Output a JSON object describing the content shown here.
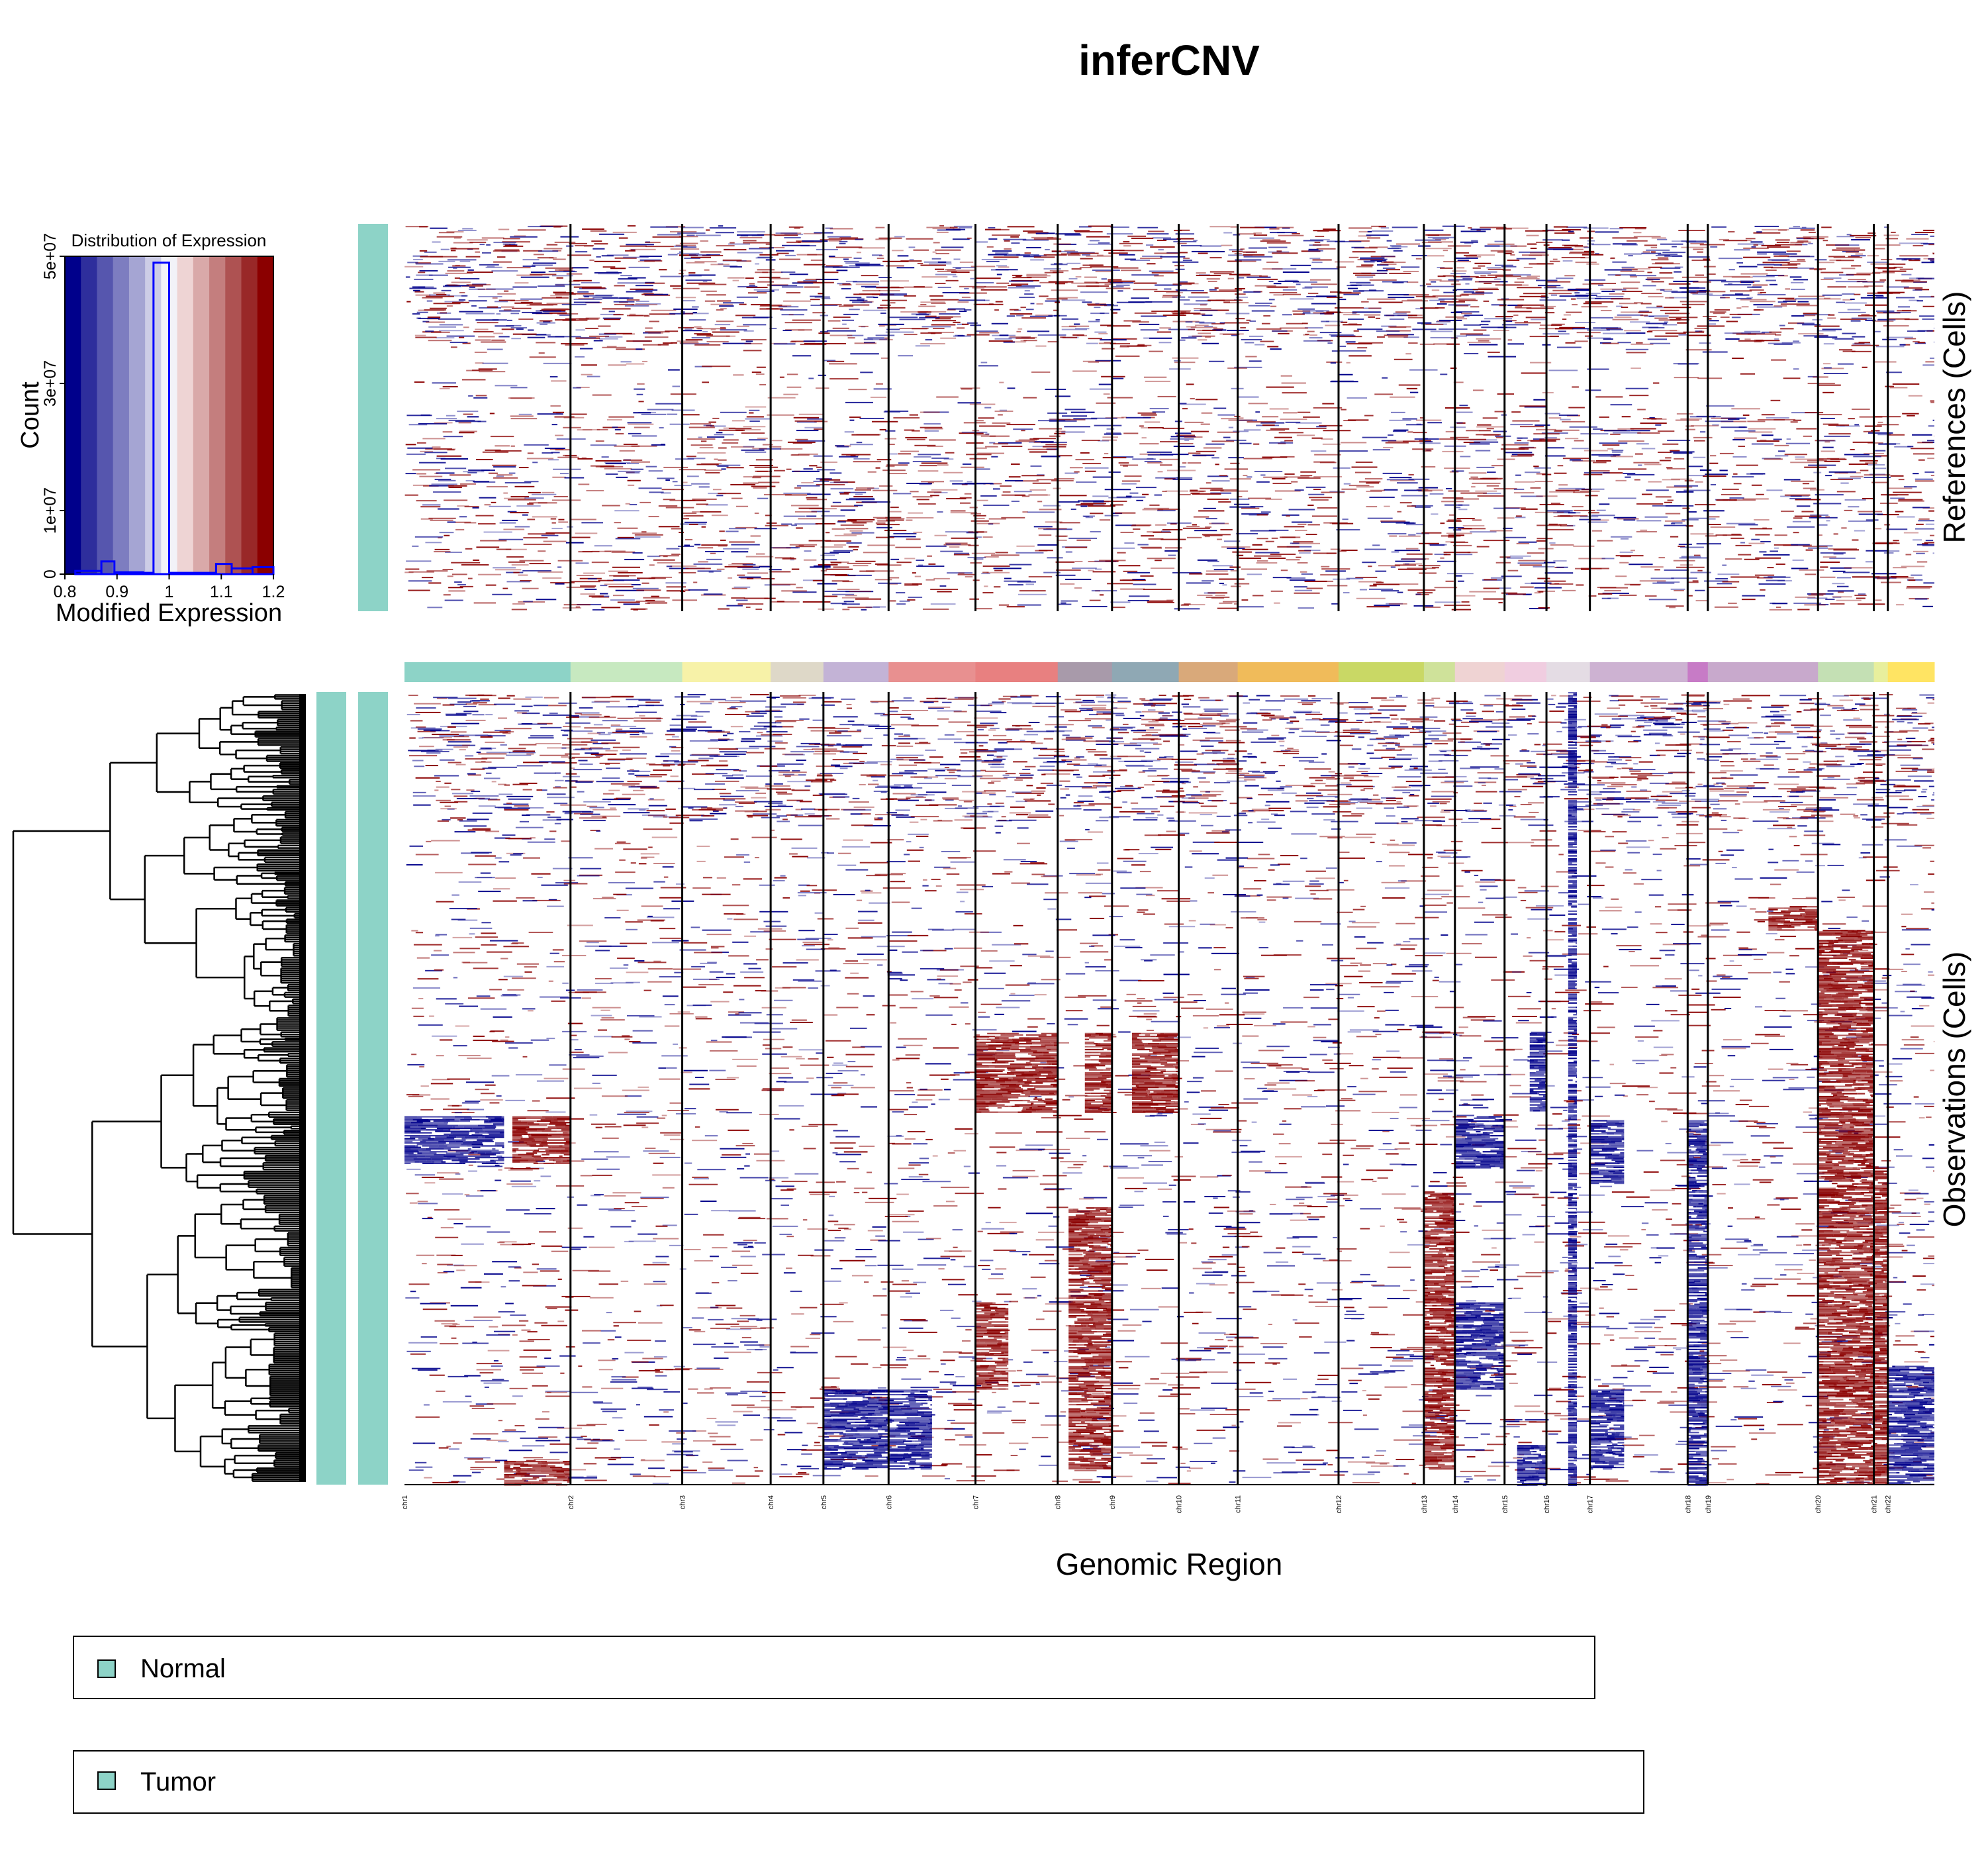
{
  "title": "inferCNV",
  "xlabel": "Genomic Region",
  "ref_label": "References (Cells)",
  "obs_label": "Observations (Cells)",
  "legend": {
    "items": [
      {
        "label": "Normal",
        "color": "#8dd3c7"
      },
      {
        "label": "Tumor",
        "color": "#8dd3c7"
      }
    ]
  },
  "colors": {
    "gain": "#8b0000",
    "loss": "#00008b",
    "neutral": "#ffffff",
    "annotation": "#8dd3c7",
    "hist_line": "#0000ff"
  },
  "chart_data": [
    {
      "type": "bar",
      "title": "Distribution of Expression",
      "xlabel": "Modified Expression",
      "ylabel": "Count",
      "xlim": [
        0.8,
        1.2
      ],
      "ylim": [
        0,
        50000000
      ],
      "x_ticks": [
        "0.8",
        "0.9",
        "1",
        "1.1",
        "1.2"
      ],
      "y_ticks": [
        "0",
        "1e+07",
        "3e+07",
        "5e+07"
      ],
      "color_scale": [
        "#00008b",
        "#2e2e9c",
        "#5656ae",
        "#7d7dc0",
        "#a5a5d3",
        "#cdcde6",
        "#f2f2f8",
        "#eed4d4",
        "#d9a9a9",
        "#c47e7e",
        "#ae5252",
        "#992828",
        "#8b0000"
      ],
      "bins": [
        {
          "x0": 0.82,
          "x1": 0.87,
          "count": 500000
        },
        {
          "x0": 0.87,
          "x1": 0.895,
          "count": 2000000
        },
        {
          "x0": 0.895,
          "x1": 0.95,
          "count": 300000
        },
        {
          "x0": 0.95,
          "x1": 0.97,
          "count": 200000
        },
        {
          "x0": 0.97,
          "x1": 1.0,
          "count": 49000000
        },
        {
          "x0": 1.0,
          "x1": 1.09,
          "count": 200000
        },
        {
          "x0": 1.09,
          "x1": 1.12,
          "count": 1600000
        },
        {
          "x0": 1.12,
          "x1": 1.16,
          "count": 900000
        },
        {
          "x0": 1.16,
          "x1": 1.2,
          "count": 1100000
        }
      ]
    },
    {
      "type": "heatmap",
      "title": "inferCNV",
      "xlabel": "Genomic Region",
      "chromosomes": [
        "chr1",
        "chr2",
        "chr3",
        "chr4",
        "chr5",
        "chr6",
        "chr7",
        "chr8",
        "chr9",
        "chr10",
        "chr11",
        "chr12",
        "chr13",
        "chr14",
        "chr15",
        "chr16",
        "chr17",
        "chr18",
        "chr19",
        "chr20",
        "chr21",
        "chr22"
      ],
      "chromosome_colors": [
        "#8dd3c7",
        "#c7e9c0",
        "#f7f2a8",
        "#ded8c8",
        "#c3b3d6",
        "#e89090",
        "#e88080",
        "#a89aaa",
        "#8fa8b4",
        "#d9a97a",
        "#f0bb5a",
        "#c9d865",
        "#cfe29a",
        "#efd3d3",
        "#f0cde0",
        "#e4dce4",
        "#cdb2d2",
        "#c77bc6",
        "#c8a9cc",
        "#c4e0b4",
        "#e8ef9d",
        "#ffe463"
      ],
      "chromosome_width_fraction": [
        0.107,
        0.072,
        0.057,
        0.034,
        0.042,
        0.056,
        0.053,
        0.035,
        0.043,
        0.038,
        0.065,
        0.055,
        0.02,
        0.032,
        0.027,
        0.028,
        0.063,
        0.013,
        0.071,
        0.036,
        0.009,
        0.03
      ],
      "value_range": [
        0.8,
        1.2
      ],
      "row_groups": [
        {
          "name": "References (Cells)",
          "annotation": "Normal"
        },
        {
          "name": "Observations (Cells)",
          "annotation": "Tumor"
        }
      ],
      "observation_cnv_blocks": [
        {
          "chr": "chr1",
          "start_frac": 0.0,
          "end_frac": 0.6,
          "row_start": 0.535,
          "row_end": 0.595,
          "value": "loss"
        },
        {
          "chr": "chr1",
          "start_frac": 0.65,
          "end_frac": 1.0,
          "row_start": 0.535,
          "row_end": 0.595,
          "value": "gain"
        },
        {
          "chr": "chr1",
          "start_frac": 0.6,
          "end_frac": 1.0,
          "row_start": 0.97,
          "row_end": 1.0,
          "value": "gain"
        },
        {
          "chr": "chr5",
          "start_frac": 0.0,
          "end_frac": 1.0,
          "row_start": 0.88,
          "row_end": 0.98,
          "value": "loss"
        },
        {
          "chr": "chr6",
          "start_frac": 0.0,
          "end_frac": 0.5,
          "row_start": 0.88,
          "row_end": 0.98,
          "value": "loss"
        },
        {
          "chr": "chr7",
          "start_frac": 0.0,
          "end_frac": 1.0,
          "row_start": 0.43,
          "row_end": 0.53,
          "value": "gain"
        },
        {
          "chr": "chr7",
          "start_frac": 0.0,
          "end_frac": 0.4,
          "row_start": 0.77,
          "row_end": 0.88,
          "value": "gain"
        },
        {
          "chr": "chr8",
          "start_frac": 0.5,
          "end_frac": 1.0,
          "row_start": 0.43,
          "row_end": 0.53,
          "value": "gain"
        },
        {
          "chr": "chr8",
          "start_frac": 0.2,
          "end_frac": 1.0,
          "row_start": 0.65,
          "row_end": 0.98,
          "value": "gain"
        },
        {
          "chr": "chr9",
          "start_frac": 0.3,
          "end_frac": 1.0,
          "row_start": 0.43,
          "row_end": 0.53,
          "value": "gain"
        },
        {
          "chr": "chr13",
          "start_frac": 0.0,
          "end_frac": 1.0,
          "row_start": 0.63,
          "row_end": 0.98,
          "value": "gain"
        },
        {
          "chr": "chr14",
          "start_frac": 0.0,
          "end_frac": 1.0,
          "row_start": 0.535,
          "row_end": 0.6,
          "value": "loss"
        },
        {
          "chr": "chr14",
          "start_frac": 0.0,
          "end_frac": 1.0,
          "row_start": 0.77,
          "row_end": 0.88,
          "value": "loss"
        },
        {
          "chr": "chr15",
          "start_frac": 0.6,
          "end_frac": 1.0,
          "row_start": 0.43,
          "row_end": 0.53,
          "value": "loss"
        },
        {
          "chr": "chr15",
          "start_frac": 0.3,
          "end_frac": 1.0,
          "row_start": 0.95,
          "row_end": 1.0,
          "value": "loss"
        },
        {
          "chr": "chr16",
          "start_frac": 0.5,
          "end_frac": 0.7,
          "row_start": 0.0,
          "row_end": 1.0,
          "value": "loss"
        },
        {
          "chr": "chr17",
          "start_frac": 0.0,
          "end_frac": 0.35,
          "row_start": 0.54,
          "row_end": 0.62,
          "value": "loss"
        },
        {
          "chr": "chr17",
          "start_frac": 0.0,
          "end_frac": 0.35,
          "row_start": 0.88,
          "row_end": 0.98,
          "value": "loss"
        },
        {
          "chr": "chr18",
          "start_frac": 0.0,
          "end_frac": 1.0,
          "row_start": 0.54,
          "row_end": 1.0,
          "value": "loss"
        },
        {
          "chr": "chr19",
          "start_frac": 0.55,
          "end_frac": 1.0,
          "row_start": 0.27,
          "row_end": 0.3,
          "value": "gain"
        },
        {
          "chr": "chr20",
          "start_frac": 0.0,
          "end_frac": 1.0,
          "row_start": 0.3,
          "row_end": 1.0,
          "value": "gain"
        },
        {
          "chr": "chr21",
          "start_frac": 0.0,
          "end_frac": 1.0,
          "row_start": 0.6,
          "row_end": 1.0,
          "value": "gain"
        },
        {
          "chr": "chr22",
          "start_frac": 0.0,
          "end_frac": 1.0,
          "row_start": 0.85,
          "row_end": 1.0,
          "value": "loss"
        }
      ]
    }
  ]
}
